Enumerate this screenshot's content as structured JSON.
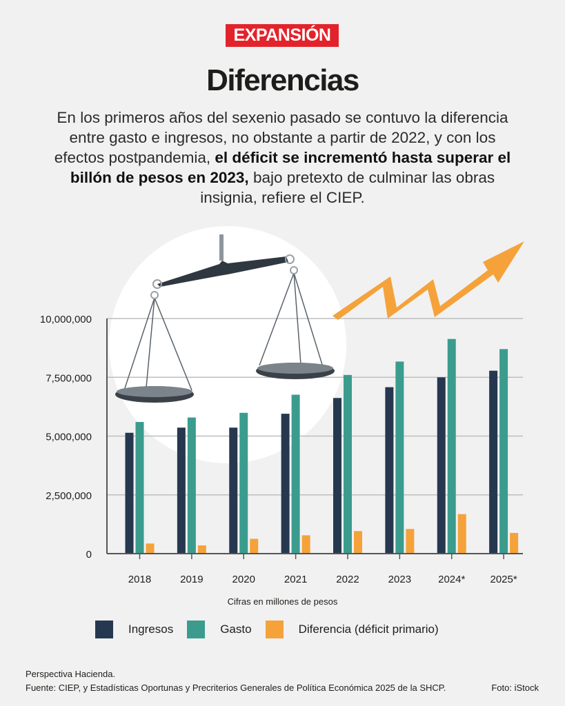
{
  "brand": {
    "logo_text": "EXPANSIÓN"
  },
  "header": {
    "title": "Diferencias",
    "lead_part1": "En los primeros años del sexenio pasado se contuvo la diferencia entre gasto e ingresos, no obstante a partir de 2022, y con los efectos postpandemia,",
    "lead_bold": "el déficit se incrementó hasta superar el billón de pesos en 2023,",
    "lead_part2": "bajo pretexto de culminar las obras insignia, refiere el CIEP."
  },
  "chart_data": {
    "type": "bar",
    "categories": [
      "2018",
      "2019",
      "2020",
      "2021",
      "2022",
      "2023",
      "2024*",
      "2025*"
    ],
    "series": [
      {
        "name": "Ingresos",
        "color": "#26384f",
        "values": [
          5140000,
          5360000,
          5360000,
          5950000,
          6620000,
          7080000,
          7500000,
          7780000
        ]
      },
      {
        "name": "Gasto",
        "color": "#3b9c8e",
        "values": [
          5600000,
          5790000,
          5990000,
          6760000,
          7600000,
          8170000,
          9130000,
          8700000
        ]
      },
      {
        "name": "Diferencia (déficit primario)",
        "color": "#f5a23a",
        "values": [
          430000,
          350000,
          630000,
          780000,
          960000,
          1050000,
          1680000,
          880000
        ]
      }
    ],
    "yticks": [
      "10,000,000",
      "7,500,000",
      "5,000,000",
      "2,500,000",
      "0"
    ],
    "ytick_values": [
      10000000,
      7500000,
      5000000,
      2500000,
      0
    ],
    "ylim": [
      0,
      10000000
    ],
    "grid": true,
    "unit_note": "Cifras en millones de pesos"
  },
  "legend": {
    "items": [
      {
        "label": "Ingresos",
        "color": "#26384f"
      },
      {
        "label": "Gasto",
        "color": "#3b9c8e"
      },
      {
        "label": "Diferencia (déficit primario)",
        "color": "#f5a23a"
      }
    ]
  },
  "footer": {
    "line1": "Perspectiva Hacienda.",
    "line2": "Fuente: CIEP, y Estadísticas Oportunas y Precriterios Generales de Política Económica 2025 de la SHCP.",
    "credit": "Foto: iStock"
  },
  "decor": {
    "scale_icon": "balance-scale-icon",
    "arrow_icon": "rising-arrow-icon"
  }
}
